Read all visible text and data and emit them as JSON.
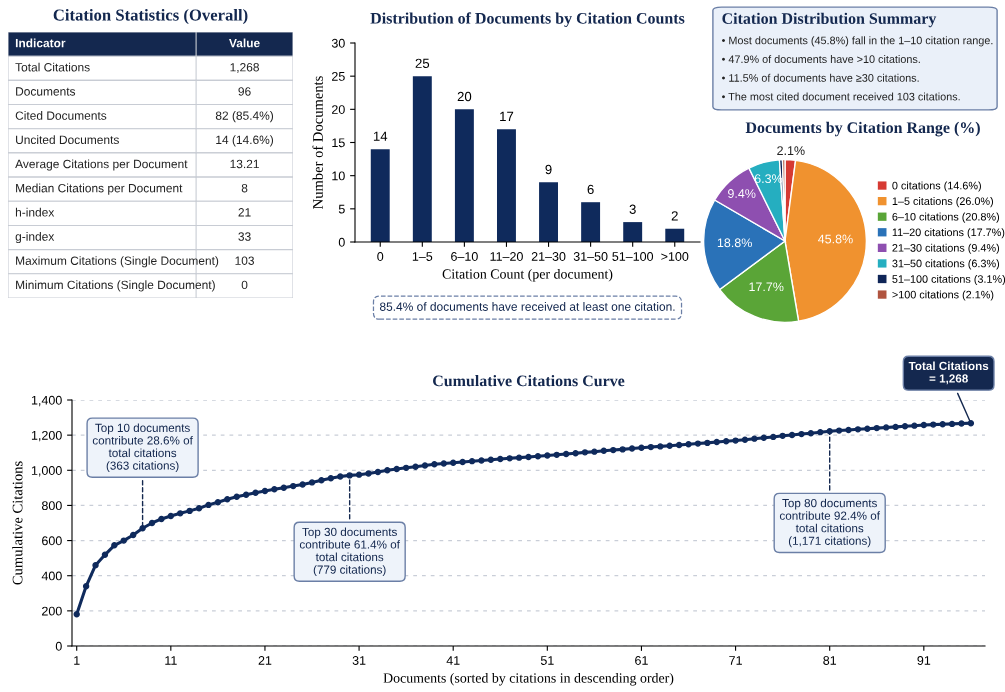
{
  "chart_data": [
    {
      "type": "other",
      "title": "Citation Statistics (Overall)",
      "annotations": [
        "Indicator",
        "Value",
        "Total Citations",
        "1,268",
        "Documents",
        "96",
        "Cited Documents",
        "82 (85.4%)",
        "Uncited Documents",
        "14 (14.6%)",
        "Average Citations per Document",
        "13.21",
        "Median Citations per Document",
        "8",
        "h-index",
        "21",
        "g-index",
        "33",
        "Maximum Citations (Single Document)",
        "103",
        "Minimum Citations (Single Document)",
        "0"
      ]
    },
    {
      "type": "bar",
      "title": "Distribution of Documents by Citation Counts",
      "xlabel": "Citation Count (per document)",
      "ylabel": "Number of Documents",
      "categories": [
        "0",
        "1–5",
        "6–10",
        "11–20",
        "21–30",
        "31–50",
        "51–100",
        ">100"
      ],
      "values": [
        14,
        25,
        20,
        17,
        9,
        6,
        3,
        2
      ],
      "color": "#0f2a5c",
      "ylim": [
        0,
        30
      ],
      "yticks": [
        0,
        5,
        10,
        15,
        20,
        25,
        30
      ],
      "data_labels": true,
      "annotations": [
        "85.4% of documents have received at least one citation."
      ]
    },
    {
      "type": "other",
      "title": "Citation Distribution Summary",
      "annotations": [
        "• Most documents (45.8%) fall in the 1–10 citation range.",
        "• 47.9% of documents have >10 citations.",
        "• 11.5% of documents have ≥30 citations.",
        "• The most cited document received 103 citations."
      ]
    },
    {
      "type": "pie",
      "title": "Documents by Citation Range (%)",
      "categories": [
        "0 citations (14.6%)",
        "1–5 citations (26.0%)",
        "6–10 citations (20.8%)",
        "11–20 citations (17.7%)",
        "21–30 citations (9.4%)",
        "31–50 citations (6.3%)",
        "51–100 citations (3.1%)",
        ">100 citations (2.1%)"
      ],
      "values": [
        2.1,
        45.8,
        17.7,
        18.8,
        9.4,
        6.3,
        0.6,
        0.5
      ],
      "value_labels": [
        "2.1%",
        "45.8%",
        "17.7%",
        "18.8%",
        "9.4%",
        "6.3%",
        null,
        null
      ],
      "colors": [
        "#d63a33",
        "#f0922f",
        "#5aa537",
        "#2a72b8",
        "#8e4fb0",
        "#25aec0",
        "#0f2557",
        "#b0543f"
      ],
      "legend": "right"
    },
    {
      "type": "line",
      "title": "Cumulative Citations Curve",
      "xlabel": "Documents (sorted by citations in descending order)",
      "ylabel": "Cumulative Citations",
      "xlim": [
        0.5,
        97.5
      ],
      "xticks": [
        1,
        11,
        21,
        31,
        41,
        51,
        61,
        71,
        81,
        91
      ],
      "ylim": [
        0,
        1400
      ],
      "yticks": [
        0,
        200,
        400,
        600,
        800,
        {
          "value": 1000,
          "label": "1,000"
        },
        {
          "value": 1200,
          "label": "1,200"
        },
        {
          "value": 1400,
          "label": "1,400"
        }
      ],
      "grid": "y",
      "marker": "circle",
      "line_style": "solid",
      "series": [
        {
          "color": "#0f2a5c",
          "x": [
            1,
            2,
            3,
            4,
            5,
            6,
            7,
            8,
            9,
            10,
            11,
            12,
            13,
            14,
            15,
            16,
            17,
            18,
            19,
            20,
            21,
            22,
            23,
            24,
            25,
            26,
            27,
            28,
            29,
            30,
            31,
            32,
            33,
            34,
            35,
            36,
            37,
            38,
            39,
            40,
            41,
            42,
            43,
            44,
            45,
            46,
            47,
            48,
            49,
            50,
            51,
            52,
            53,
            54,
            55,
            56,
            57,
            58,
            59,
            60,
            61,
            62,
            63,
            64,
            65,
            66,
            67,
            68,
            69,
            70,
            71,
            72,
            73,
            74,
            75,
            76,
            77,
            78,
            79,
            80,
            81,
            82,
            83,
            84,
            85,
            86,
            87,
            88,
            89,
            90,
            91,
            92,
            93,
            94,
            95,
            96
          ],
          "values": [
            181,
            340,
            460,
            519,
            573,
            600,
            632,
            670,
            700,
            723,
            740,
            755,
            769,
            784,
            803,
            818,
            835,
            849,
            861,
            872,
            882,
            892,
            901,
            910,
            919,
            931,
            943,
            955,
            965,
            971,
            975,
            982,
            990,
            1000,
            1007,
            1014,
            1020,
            1027,
            1034,
            1039,
            1043,
            1047,
            1052,
            1056,
            1060,
            1064,
            1068,
            1072,
            1076,
            1080,
            1084,
            1088,
            1093,
            1097,
            1102,
            1106,
            1111,
            1115,
            1119,
            1124,
            1128,
            1132,
            1136,
            1140,
            1144,
            1148,
            1152,
            1156,
            1161,
            1165,
            1169,
            1174,
            1180,
            1185,
            1190,
            1196,
            1201,
            1206,
            1211,
            1217,
            1222,
            1226,
            1229,
            1233,
            1236,
            1240,
            1244,
            1247,
            1251,
            1254,
            1258,
            1260,
            1262,
            1264,
            1266,
            1268
          ]
        }
      ],
      "annotations": [
        {
          "text": "Top 10 documents\ncontribute 28.6% of\ntotal citations\n(363 citations)",
          "x": 8,
          "y": 670
        },
        {
          "text": "Top 30 documents\ncontribute 61.4% of\ntotal citations\n(779 citations)",
          "x": 30,
          "y": 971
        },
        {
          "text": "Top 80 documents\ncontribute 92.4% of\ntotal citations\n(1,171 citations)",
          "x": 81,
          "y": 1222
        },
        {
          "text": "Total Citations\n= 1,268",
          "x": 96,
          "y": 1268
        }
      ]
    }
  ]
}
